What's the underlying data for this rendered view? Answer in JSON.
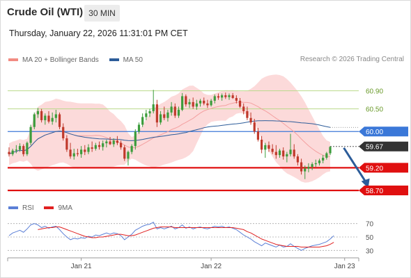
{
  "header": {
    "title": "Crude Oil (WTI)",
    "timeframe": "30 MIN",
    "datetime": "Thursday, January 22, 2026 11:31:01 PM CET"
  },
  "legend": {
    "items": [
      {
        "label": "MA 20 + Bollinger Bands",
        "color": "#f28b82"
      },
      {
        "label": "MA 50",
        "color": "#2c5c99"
      }
    ],
    "credit": "Research © 2026 Trading Central"
  },
  "rsi_legend": {
    "items": [
      {
        "label": "RSI",
        "color": "#5b7fd6"
      },
      {
        "label": "9MA",
        "color": "#e02020"
      }
    ]
  },
  "colors": {
    "bull": "#3c9c3c",
    "bear": "#c0392b",
    "bands": "#fbd3d3",
    "ma20": "#f4a0a0",
    "ma50": "#2c5c99",
    "target_green": "#b9d98a",
    "pivot_blue": "#3b78d8",
    "support_red": "#e01010",
    "arrow": "#2c5c99",
    "rsi": "#5b7fd6",
    "rsi_ma": "#e02020"
  },
  "chart_data": [
    {
      "type": "candlestick",
      "instrument": "Crude Oil (WTI)",
      "timeframe": "30 MIN",
      "ylim": [
        58.5,
        61.4
      ],
      "x_ticks": [
        {
          "index": 20,
          "label": "Jan 21"
        },
        {
          "index": 56,
          "label": "Jan 22"
        },
        {
          "index": 93,
          "label": "Jan 23"
        }
      ],
      "levels": [
        {
          "value": 60.9,
          "label": "60.90",
          "kind": "target"
        },
        {
          "value": 60.5,
          "label": "60.50",
          "kind": "target"
        },
        {
          "value": 60.0,
          "label": "60.00",
          "kind": "pivot"
        },
        {
          "value": 59.67,
          "label": "59.67",
          "kind": "last"
        },
        {
          "value": 59.2,
          "label": "59.20",
          "kind": "support"
        },
        {
          "value": 58.7,
          "label": "58.70",
          "kind": "support"
        }
      ],
      "last_price": 59.67,
      "forecast_arrow": {
        "from_index": 92,
        "from": 59.67,
        "to_index": 98,
        "to": 58.78
      },
      "candles": [
        [
          59.55,
          59.65,
          59.45,
          59.5
        ],
        [
          59.5,
          59.62,
          59.46,
          59.58
        ],
        [
          59.58,
          59.7,
          59.52,
          59.6
        ],
        [
          59.6,
          59.74,
          59.55,
          59.68
        ],
        [
          59.68,
          59.72,
          59.45,
          59.5
        ],
        [
          59.5,
          59.78,
          59.46,
          59.75
        ],
        [
          59.75,
          60.15,
          59.7,
          60.1
        ],
        [
          60.1,
          60.42,
          60.05,
          60.38
        ],
        [
          60.38,
          60.52,
          60.3,
          60.45
        ],
        [
          60.45,
          60.5,
          60.2,
          60.25
        ],
        [
          60.25,
          60.4,
          60.15,
          60.35
        ],
        [
          60.35,
          60.45,
          60.18,
          60.22
        ],
        [
          60.22,
          60.42,
          60.15,
          60.3
        ],
        [
          60.3,
          60.48,
          60.2,
          60.38
        ],
        [
          60.38,
          60.42,
          60.05,
          60.1
        ],
        [
          60.1,
          60.18,
          59.8,
          59.85
        ],
        [
          59.85,
          59.92,
          59.55,
          59.6
        ],
        [
          59.6,
          59.75,
          59.4,
          59.45
        ],
        [
          59.45,
          59.62,
          59.38,
          59.52
        ],
        [
          59.52,
          59.62,
          59.45,
          59.5
        ],
        [
          59.5,
          59.68,
          59.42,
          59.6
        ],
        [
          59.6,
          59.7,
          59.48,
          59.55
        ],
        [
          59.55,
          59.72,
          59.5,
          59.65
        ],
        [
          59.65,
          59.78,
          59.55,
          59.62
        ],
        [
          59.62,
          59.75,
          59.58,
          59.7
        ],
        [
          59.7,
          59.78,
          59.6,
          59.66
        ],
        [
          59.66,
          59.8,
          59.58,
          59.74
        ],
        [
          59.74,
          59.82,
          59.65,
          59.78
        ],
        [
          59.78,
          59.88,
          59.7,
          59.72
        ],
        [
          59.72,
          59.85,
          59.66,
          59.8
        ],
        [
          59.8,
          59.9,
          59.7,
          59.75
        ],
        [
          59.75,
          59.8,
          59.6,
          59.65
        ],
        [
          59.65,
          59.7,
          59.35,
          59.4
        ],
        [
          59.4,
          59.58,
          59.25,
          59.55
        ],
        [
          59.55,
          59.72,
          59.5,
          59.68
        ],
        [
          59.68,
          60.05,
          59.6,
          60.0
        ],
        [
          60.0,
          60.2,
          59.95,
          60.15
        ],
        [
          60.15,
          60.4,
          60.1,
          60.32
        ],
        [
          60.32,
          60.48,
          60.25,
          60.4
        ],
        [
          60.4,
          60.5,
          60.32,
          60.45
        ],
        [
          60.45,
          60.92,
          60.4,
          60.6
        ],
        [
          60.6,
          60.7,
          60.1,
          60.2
        ],
        [
          60.2,
          60.45,
          60.15,
          60.38
        ],
        [
          60.38,
          60.55,
          60.25,
          60.3
        ],
        [
          60.3,
          60.48,
          60.22,
          60.42
        ],
        [
          60.42,
          60.65,
          60.35,
          60.55
        ],
        [
          60.55,
          60.62,
          60.3,
          60.35
        ],
        [
          60.35,
          60.55,
          60.3,
          60.48
        ],
        [
          60.48,
          60.85,
          60.45,
          60.78
        ],
        [
          60.78,
          60.82,
          60.55,
          60.6
        ],
        [
          60.6,
          60.72,
          60.52,
          60.65
        ],
        [
          60.65,
          60.75,
          60.5,
          60.55
        ],
        [
          60.55,
          60.7,
          60.48,
          60.62
        ],
        [
          60.62,
          60.72,
          60.55,
          60.68
        ],
        [
          60.68,
          60.75,
          60.58,
          60.62
        ],
        [
          60.62,
          60.7,
          60.52,
          60.58
        ],
        [
          60.58,
          60.72,
          60.55,
          60.68
        ],
        [
          60.68,
          60.82,
          60.62,
          60.78
        ],
        [
          60.78,
          60.84,
          60.7,
          60.75
        ],
        [
          60.75,
          60.84,
          60.68,
          60.8
        ],
        [
          60.8,
          60.86,
          60.72,
          60.76
        ],
        [
          60.76,
          60.84,
          60.7,
          60.8
        ],
        [
          60.8,
          60.85,
          60.72,
          60.74
        ],
        [
          60.74,
          60.8,
          60.62,
          60.68
        ],
        [
          60.68,
          60.74,
          60.52,
          60.55
        ],
        [
          60.55,
          60.62,
          60.38,
          60.45
        ],
        [
          60.45,
          60.55,
          60.25,
          60.3
        ],
        [
          60.3,
          60.42,
          60.15,
          60.2
        ],
        [
          60.2,
          60.28,
          59.95,
          60.0
        ],
        [
          60.0,
          60.08,
          59.78,
          59.82
        ],
        [
          59.82,
          59.9,
          59.52,
          59.6
        ],
        [
          59.6,
          59.75,
          59.42,
          59.7
        ],
        [
          59.7,
          59.78,
          59.55,
          59.62
        ],
        [
          59.62,
          59.72,
          59.5,
          59.55
        ],
        [
          59.55,
          59.7,
          59.4,
          59.48
        ],
        [
          59.48,
          59.62,
          59.42,
          59.58
        ],
        [
          59.58,
          59.65,
          59.38,
          59.45
        ],
        [
          59.45,
          59.55,
          59.32,
          59.5
        ],
        [
          59.5,
          59.95,
          59.45,
          59.6
        ],
        [
          59.6,
          59.72,
          59.4,
          59.45
        ],
        [
          59.45,
          59.5,
          59.25,
          59.32
        ],
        [
          59.32,
          59.4,
          59.05,
          59.12
        ],
        [
          59.12,
          59.25,
          58.95,
          59.18
        ],
        [
          59.18,
          59.3,
          59.1,
          59.22
        ],
        [
          59.22,
          59.32,
          59.15,
          59.28
        ],
        [
          59.28,
          59.38,
          59.22,
          59.3
        ],
        [
          59.3,
          59.4,
          59.25,
          59.36
        ],
        [
          59.36,
          59.48,
          59.3,
          59.42
        ],
        [
          59.42,
          59.55,
          59.38,
          59.52
        ],
        [
          59.52,
          59.68,
          59.48,
          59.66
        ]
      ]
    },
    {
      "type": "line",
      "name": "RSI",
      "ylim": [
        20,
        80
      ],
      "y_ticks": [
        70,
        50,
        30
      ],
      "series": [
        {
          "name": "RSI",
          "values": [
            52,
            56,
            58,
            60,
            57,
            62,
            68,
            70,
            68,
            64,
            66,
            63,
            65,
            66,
            61,
            55,
            50,
            46,
            48,
            47,
            49,
            48,
            51,
            50,
            53,
            52,
            54,
            56,
            54,
            56,
            55,
            52,
            46,
            50,
            54,
            60,
            63,
            66,
            68,
            69,
            72,
            62,
            64,
            62,
            64,
            66,
            62,
            64,
            68,
            63,
            65,
            62,
            64,
            65,
            63,
            62,
            64,
            66,
            65,
            66,
            64,
            65,
            63,
            61,
            57,
            53,
            50,
            47,
            43,
            40,
            37,
            41,
            39,
            37,
            35,
            38,
            35,
            36,
            40,
            36,
            33,
            30,
            33,
            35,
            37,
            38,
            39,
            41,
            43,
            47,
            52
          ]
        },
        {
          "name": "9MA",
          "values": [
            null,
            null,
            null,
            null,
            null,
            null,
            null,
            null,
            61,
            62,
            63,
            64,
            64,
            65,
            65,
            63,
            61,
            59,
            57,
            55,
            53,
            51,
            50,
            49,
            49,
            50,
            50,
            51,
            52,
            53,
            54,
            54,
            53,
            52,
            52,
            53,
            55,
            57,
            59,
            61,
            63,
            64,
            65,
            65,
            65,
            65,
            64,
            64,
            64,
            64,
            64,
            64,
            64,
            64,
            64,
            64,
            64,
            64,
            64,
            64,
            64,
            64,
            64,
            63,
            62,
            61,
            58,
            56,
            53,
            50,
            47,
            45,
            43,
            41,
            39,
            38,
            37,
            36,
            36,
            36,
            36,
            35,
            35,
            35,
            35,
            35,
            35,
            36,
            37,
            39,
            42
          ]
        }
      ]
    }
  ]
}
